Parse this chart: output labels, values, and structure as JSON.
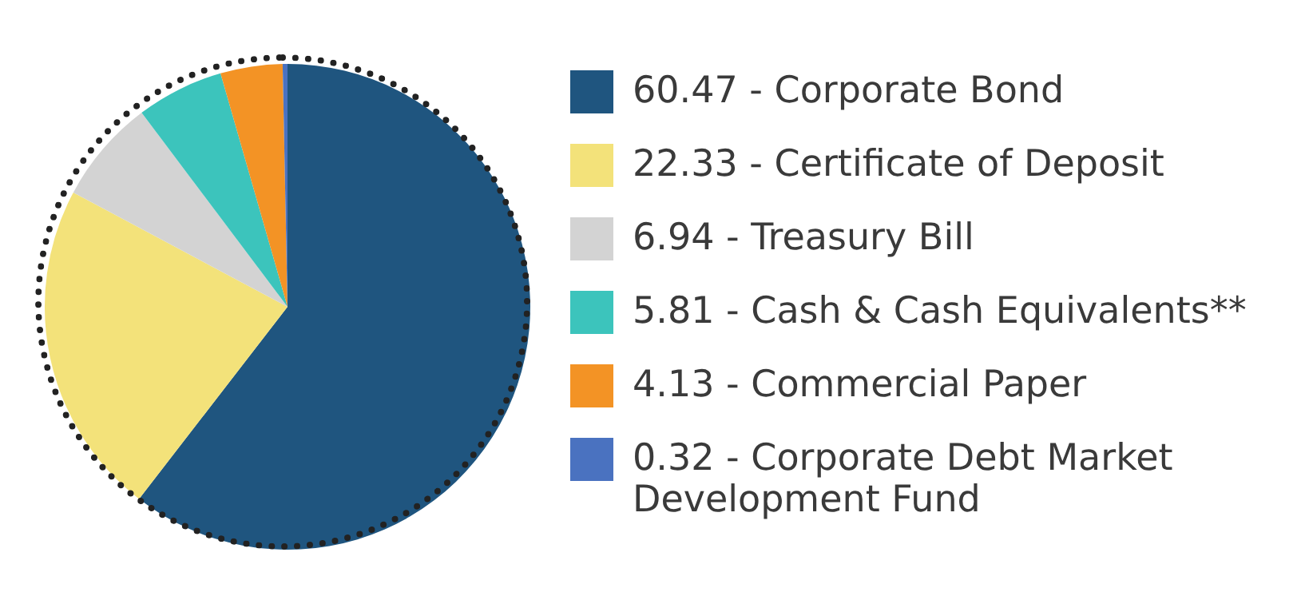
{
  "chart_data": {
    "type": "pie",
    "categories": [
      "60.47 - Corporate Bond",
      "22.33 - Certificate of Deposit",
      "6.94 - Treasury Bill",
      "5.81 - Cash & Cash Equivalents**",
      "4.13 - Commercial Paper",
      "0.32 - Corporate Debt Market Development Fund"
    ],
    "values": [
      60.47,
      22.33,
      6.94,
      5.81,
      4.13,
      0.32
    ],
    "colors": [
      "#1f557f",
      "#f3e27a",
      "#d3d3d3",
      "#3cc4bc",
      "#f39325",
      "#4a72c0"
    ],
    "legend": "right"
  }
}
